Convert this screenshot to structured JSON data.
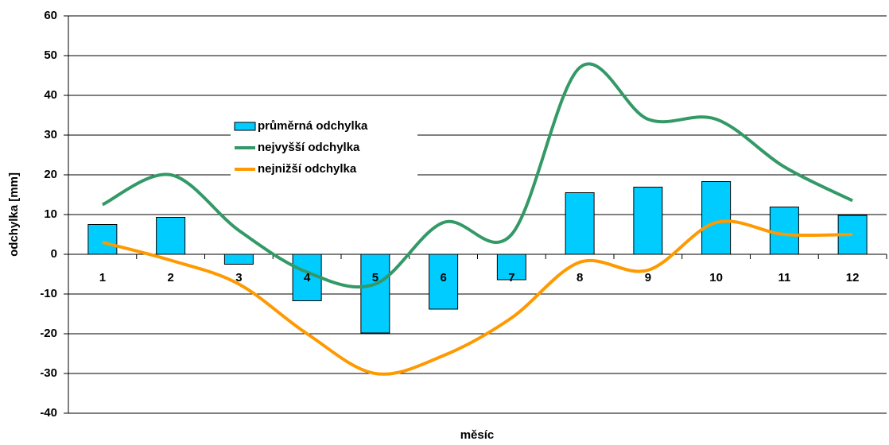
{
  "chart_data": {
    "type": "bar-line",
    "x_label": "měsíc",
    "y_label": "odchylka [mm]",
    "categories": [
      "1",
      "2",
      "3",
      "4",
      "5",
      "6",
      "7",
      "8",
      "9",
      "10",
      "11",
      "12"
    ],
    "series": [
      {
        "name": "průměrná odchylka",
        "type": "bar",
        "color": "#00ccff",
        "values": [
          7.5,
          9.3,
          -2.5,
          -11.7,
          -19.8,
          -13.8,
          -6.4,
          15.5,
          16.9,
          18.3,
          11.9,
          9.8
        ]
      },
      {
        "name": "nejvyšší odchylka",
        "type": "line",
        "color": "#339966",
        "values": [
          12.5,
          20,
          6,
          -4.5,
          -7.5,
          8,
          5,
          47,
          34,
          34,
          22,
          13.5
        ]
      },
      {
        "name": "nejnižší odchylka",
        "type": "line",
        "color": "#ff9900",
        "values": [
          3,
          -1.5,
          -7.5,
          -20,
          -30,
          -25.5,
          -16,
          -2,
          -4,
          8,
          5,
          5
        ]
      }
    ],
    "ylim": [
      -40,
      60
    ],
    "yticks": [
      -40,
      -30,
      -20,
      -10,
      0,
      10,
      20,
      30,
      40,
      50,
      60
    ],
    "grid": true,
    "smooth": true,
    "legend": "center-left"
  }
}
